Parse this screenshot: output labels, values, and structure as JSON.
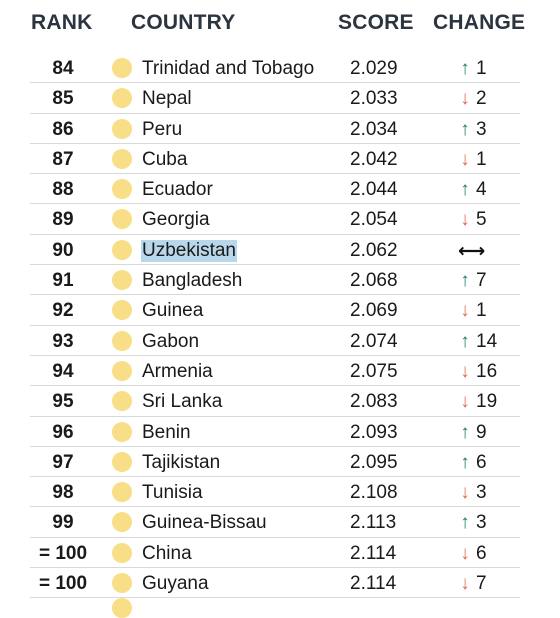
{
  "header": {
    "rank": "RANK",
    "country": "COUNTRY",
    "score": "SCORE",
    "change": "CHANGE"
  },
  "colors": {
    "dot": "#f8de86",
    "up": "#1e7a6e",
    "down": "#e0694f",
    "highlight": "#b9d7ea"
  },
  "rows": [
    {
      "rank": "84",
      "country": "Trinidad and Tobago",
      "score": "2.029",
      "dir": "up",
      "change": "1"
    },
    {
      "rank": "85",
      "country": "Nepal",
      "score": "2.033",
      "dir": "down",
      "change": "2"
    },
    {
      "rank": "86",
      "country": "Peru",
      "score": "2.034",
      "dir": "up",
      "change": "3"
    },
    {
      "rank": "87",
      "country": "Cuba",
      "score": "2.042",
      "dir": "down",
      "change": "1"
    },
    {
      "rank": "88",
      "country": "Ecuador",
      "score": "2.044",
      "dir": "up",
      "change": "4"
    },
    {
      "rank": "89",
      "country": "Georgia",
      "score": "2.054",
      "dir": "down",
      "change": "5"
    },
    {
      "rank": "90",
      "country": "Uzbekistan",
      "score": "2.062",
      "dir": "same",
      "change": "",
      "highlighted": true
    },
    {
      "rank": "91",
      "country": "Bangladesh",
      "score": "2.068",
      "dir": "up",
      "change": "7"
    },
    {
      "rank": "92",
      "country": "Guinea",
      "score": "2.069",
      "dir": "down",
      "change": "1"
    },
    {
      "rank": "93",
      "country": "Gabon",
      "score": "2.074",
      "dir": "up",
      "change": "14"
    },
    {
      "rank": "94",
      "country": "Armenia",
      "score": "2.075",
      "dir": "down",
      "change": "16"
    },
    {
      "rank": "95",
      "country": "Sri Lanka",
      "score": "2.083",
      "dir": "down",
      "change": "19"
    },
    {
      "rank": "96",
      "country": "Benin",
      "score": "2.093",
      "dir": "up",
      "change": "9"
    },
    {
      "rank": "97",
      "country": "Tajikistan",
      "score": "2.095",
      "dir": "up",
      "change": "6"
    },
    {
      "rank": "98",
      "country": "Tunisia",
      "score": "2.108",
      "dir": "down",
      "change": "3"
    },
    {
      "rank": "99",
      "country": "Guinea-Bissau",
      "score": "2.113",
      "dir": "up",
      "change": "3"
    },
    {
      "rank": "= 100",
      "country": "China",
      "score": "2.114",
      "dir": "down",
      "change": "6"
    },
    {
      "rank": "= 100",
      "country": "Guyana",
      "score": "2.114",
      "dir": "down",
      "change": "7"
    }
  ]
}
